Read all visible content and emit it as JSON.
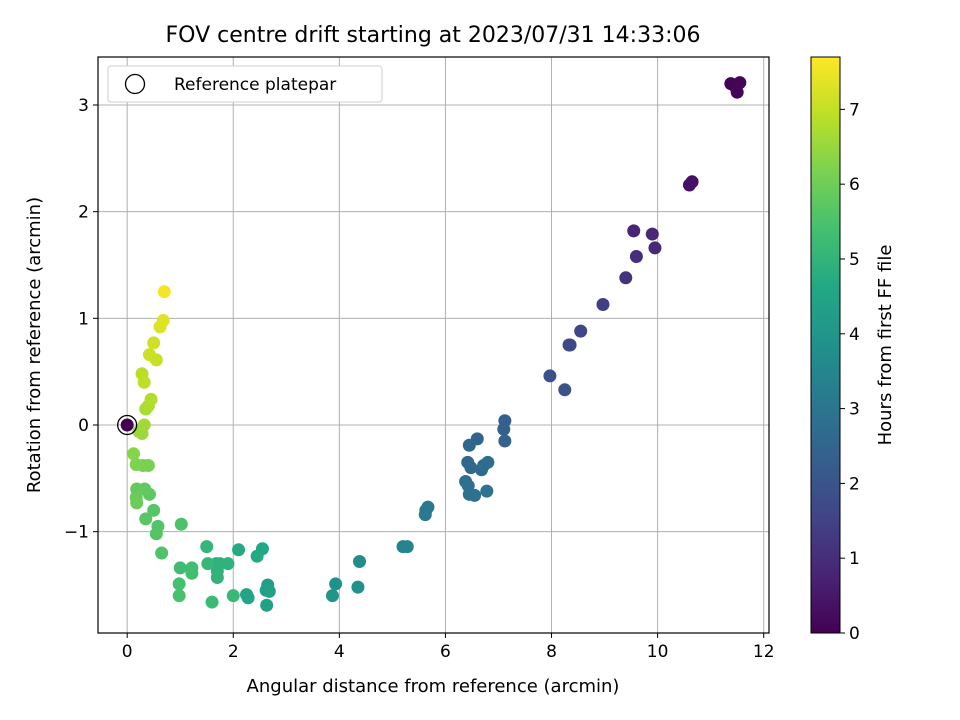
{
  "chart_data": {
    "type": "scatter",
    "title": "FOV centre drift starting at 2023/07/31 14:33:06",
    "xlabel": "Angular distance from reference (arcmin)",
    "ylabel": "Rotation from reference (arcmin)",
    "xlim": [
      -0.55,
      12.1
    ],
    "ylim": [
      -1.95,
      3.45
    ],
    "xticks": [
      0,
      2,
      4,
      6,
      8,
      10,
      12
    ],
    "yticks": [
      -1,
      0,
      1,
      2,
      3
    ],
    "grid": true,
    "legend": {
      "position": "top-left",
      "entries": [
        "Reference platepar"
      ]
    },
    "reference_point": {
      "x": 0,
      "y": 0
    },
    "colorbar": {
      "label": "Hours from first FF file",
      "range": [
        0,
        7.7
      ],
      "ticks": [
        0,
        1,
        2,
        3,
        4,
        5,
        6,
        7
      ],
      "colormap": "viridis"
    },
    "series": [
      {
        "points": [
          {
            "x": 11.38,
            "y": 3.2,
            "h": 0.05
          },
          {
            "x": 11.45,
            "y": 3.18,
            "h": 0.08
          },
          {
            "x": 11.55,
            "y": 3.21,
            "h": 0.1
          },
          {
            "x": 11.5,
            "y": 3.12,
            "h": 0.12
          },
          {
            "x": 10.65,
            "y": 2.28,
            "h": 0.3
          },
          {
            "x": 10.6,
            "y": 2.25,
            "h": 0.35
          },
          {
            "x": 9.55,
            "y": 1.82,
            "h": 0.8
          },
          {
            "x": 9.9,
            "y": 1.79,
            "h": 0.85
          },
          {
            "x": 9.95,
            "y": 1.66,
            "h": 0.9
          },
          {
            "x": 9.6,
            "y": 1.58,
            "h": 1.0
          },
          {
            "x": 9.4,
            "y": 1.38,
            "h": 1.1
          },
          {
            "x": 8.97,
            "y": 1.13,
            "h": 1.4
          },
          {
            "x": 8.55,
            "y": 0.88,
            "h": 1.6
          },
          {
            "x": 8.35,
            "y": 0.75,
            "h": 1.7
          },
          {
            "x": 8.33,
            "y": 0.75,
            "h": 1.72
          },
          {
            "x": 7.97,
            "y": 0.46,
            "h": 1.9
          },
          {
            "x": 8.25,
            "y": 0.33,
            "h": 1.95
          },
          {
            "x": 7.12,
            "y": 0.04,
            "h": 2.3
          },
          {
            "x": 7.1,
            "y": -0.04,
            "h": 2.35
          },
          {
            "x": 7.12,
            "y": -0.15,
            "h": 2.4
          },
          {
            "x": 6.6,
            "y": -0.13,
            "h": 2.5
          },
          {
            "x": 6.45,
            "y": -0.19,
            "h": 2.55
          },
          {
            "x": 6.42,
            "y": -0.35,
            "h": 2.6
          },
          {
            "x": 6.48,
            "y": -0.4,
            "h": 2.62
          },
          {
            "x": 6.68,
            "y": -0.42,
            "h": 2.65
          },
          {
            "x": 6.72,
            "y": -0.38,
            "h": 2.7
          },
          {
            "x": 6.8,
            "y": -0.35,
            "h": 2.72
          },
          {
            "x": 6.38,
            "y": -0.53,
            "h": 2.8
          },
          {
            "x": 6.43,
            "y": -0.57,
            "h": 2.82
          },
          {
            "x": 6.45,
            "y": -0.65,
            "h": 2.85
          },
          {
            "x": 6.55,
            "y": -0.66,
            "h": 2.87
          },
          {
            "x": 6.78,
            "y": -0.62,
            "h": 2.9
          },
          {
            "x": 5.67,
            "y": -0.77,
            "h": 3.1
          },
          {
            "x": 5.63,
            "y": -0.8,
            "h": 3.12
          },
          {
            "x": 5.62,
            "y": -0.84,
            "h": 3.15
          },
          {
            "x": 5.2,
            "y": -1.14,
            "h": 3.4
          },
          {
            "x": 5.28,
            "y": -1.14,
            "h": 3.45
          },
          {
            "x": 4.38,
            "y": -1.28,
            "h": 3.7
          },
          {
            "x": 3.93,
            "y": -1.49,
            "h": 3.9
          },
          {
            "x": 4.35,
            "y": -1.52,
            "h": 3.85
          },
          {
            "x": 3.87,
            "y": -1.6,
            "h": 4.0
          },
          {
            "x": 2.65,
            "y": -1.5,
            "h": 4.3
          },
          {
            "x": 2.62,
            "y": -1.55,
            "h": 4.35
          },
          {
            "x": 2.68,
            "y": -1.56,
            "h": 4.37
          },
          {
            "x": 2.63,
            "y": -1.69,
            "h": 4.4
          },
          {
            "x": 2.25,
            "y": -1.59,
            "h": 4.5
          },
          {
            "x": 2.28,
            "y": -1.62,
            "h": 4.52
          },
          {
            "x": 2.55,
            "y": -1.16,
            "h": 4.6
          },
          {
            "x": 2.45,
            "y": -1.23,
            "h": 4.65
          },
          {
            "x": 2.1,
            "y": -1.17,
            "h": 4.7
          },
          {
            "x": 1.68,
            "y": -1.3,
            "h": 4.9
          },
          {
            "x": 1.75,
            "y": -1.3,
            "h": 4.92
          },
          {
            "x": 1.9,
            "y": -1.3,
            "h": 4.95
          },
          {
            "x": 1.7,
            "y": -1.37,
            "h": 4.97
          },
          {
            "x": 1.7,
            "y": -1.43,
            "h": 5.0
          },
          {
            "x": 1.5,
            "y": -1.14,
            "h": 5.05
          },
          {
            "x": 1.52,
            "y": -1.3,
            "h": 5.1
          },
          {
            "x": 1.6,
            "y": -1.66,
            "h": 5.2
          },
          {
            "x": 2.0,
            "y": -1.6,
            "h": 5.15
          },
          {
            "x": 1.0,
            "y": -1.34,
            "h": 5.3
          },
          {
            "x": 1.22,
            "y": -1.34,
            "h": 5.32
          },
          {
            "x": 1.22,
            "y": -1.39,
            "h": 5.35
          },
          {
            "x": 0.98,
            "y": -1.49,
            "h": 5.4
          },
          {
            "x": 0.98,
            "y": -1.6,
            "h": 5.45
          },
          {
            "x": 1.02,
            "y": -0.93,
            "h": 5.5
          },
          {
            "x": 0.65,
            "y": -1.2,
            "h": 5.55
          },
          {
            "x": 0.58,
            "y": -0.95,
            "h": 5.6
          },
          {
            "x": 0.55,
            "y": -1.02,
            "h": 5.62
          },
          {
            "x": 0.5,
            "y": -0.8,
            "h": 5.65
          },
          {
            "x": 0.35,
            "y": -0.88,
            "h": 5.68
          },
          {
            "x": 0.42,
            "y": -0.65,
            "h": 5.75
          },
          {
            "x": 0.33,
            "y": -0.6,
            "h": 5.8
          },
          {
            "x": 0.18,
            "y": -0.6,
            "h": 5.85
          },
          {
            "x": 0.17,
            "y": -0.68,
            "h": 5.9
          },
          {
            "x": 0.18,
            "y": -0.73,
            "h": 5.95
          },
          {
            "x": 0.3,
            "y": -0.38,
            "h": 6.1
          },
          {
            "x": 0.4,
            "y": -0.38,
            "h": 6.15
          },
          {
            "x": 0.17,
            "y": -0.37,
            "h": 6.2
          },
          {
            "x": 0.12,
            "y": -0.27,
            "h": 6.3
          },
          {
            "x": 0.22,
            "y": -0.06,
            "h": 6.5
          },
          {
            "x": 0.28,
            "y": -0.08,
            "h": 6.55
          },
          {
            "x": 0.32,
            "y": 0.0,
            "h": 6.6
          },
          {
            "x": 0.35,
            "y": 0.15,
            "h": 6.7
          },
          {
            "x": 0.4,
            "y": 0.18,
            "h": 6.75
          },
          {
            "x": 0.45,
            "y": 0.24,
            "h": 6.8
          },
          {
            "x": 0.28,
            "y": 0.48,
            "h": 6.9
          },
          {
            "x": 0.32,
            "y": 0.4,
            "h": 6.95
          },
          {
            "x": 0.55,
            "y": 0.61,
            "h": 7.05
          },
          {
            "x": 0.42,
            "y": 0.66,
            "h": 7.1
          },
          {
            "x": 0.5,
            "y": 0.77,
            "h": 7.15
          },
          {
            "x": 0.62,
            "y": 0.92,
            "h": 7.3
          },
          {
            "x": 0.68,
            "y": 0.98,
            "h": 7.35
          },
          {
            "x": 0.7,
            "y": 1.25,
            "h": 7.6
          },
          {
            "x": 0.0,
            "y": 0.0,
            "h": 0.0
          }
        ]
      }
    ]
  }
}
